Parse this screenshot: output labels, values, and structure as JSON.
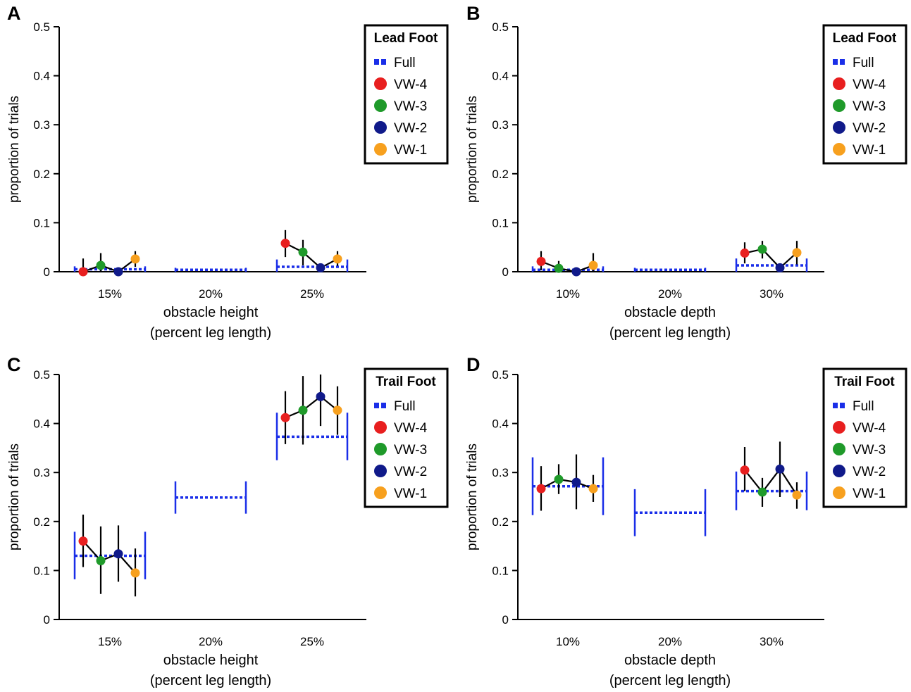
{
  "colors": {
    "full": "#1a2ee8",
    "vw4": "#e81f1f",
    "vw3": "#1f9a2a",
    "vw2": "#101a8a",
    "vw1": "#f7a01e",
    "line": "#000000"
  },
  "chart_data": [
    {
      "type": "scatter",
      "panel_letter": "A",
      "legend_title": "Lead Foot",
      "xlabel": "obstacle height",
      "xlabel2": "(percent leg length)",
      "ylabel": "proportion of trials",
      "ylim": [
        0,
        0.5
      ],
      "yticks": [
        "0",
        "0.1",
        "0.2",
        "0.3",
        "0.4",
        "0.5"
      ],
      "categories": [
        "15%",
        "20%",
        "25%"
      ],
      "legend": [
        {
          "name": "Full",
          "key": "full",
          "marker": "dash"
        },
        {
          "name": "VW-4",
          "key": "vw4",
          "marker": "dot"
        },
        {
          "name": "VW-3",
          "key": "vw3",
          "marker": "dot"
        },
        {
          "name": "VW-2",
          "key": "vw2",
          "marker": "dot"
        },
        {
          "name": "VW-1",
          "key": "vw1",
          "marker": "dot"
        }
      ],
      "full": [
        {
          "value": 0.005,
          "low": 0.0,
          "high": 0.011
        },
        {
          "value": 0.004,
          "low": 0.0,
          "high": 0.008
        },
        {
          "value": 0.01,
          "low": 0.0,
          "high": 0.025
        }
      ],
      "vw": [
        [
          {
            "value": 0.0,
            "low": 0.0,
            "high": 0.027
          },
          {
            "value": 0.013,
            "low": 0.0,
            "high": 0.038
          },
          {
            "value": 0.0,
            "low": 0.0,
            "high": 0.0
          },
          {
            "value": 0.026,
            "low": 0.01,
            "high": 0.042
          }
        ],
        [
          null,
          null,
          null,
          null
        ],
        [
          {
            "value": 0.058,
            "low": 0.03,
            "high": 0.085
          },
          {
            "value": 0.04,
            "low": 0.013,
            "high": 0.065
          },
          {
            "value": 0.008,
            "low": 0.0,
            "high": 0.008
          },
          {
            "value": 0.026,
            "low": 0.012,
            "high": 0.042
          }
        ]
      ]
    },
    {
      "type": "scatter",
      "panel_letter": "B",
      "legend_title": "Lead Foot",
      "xlabel": "obstacle depth",
      "xlabel2": "(percent leg length)",
      "ylabel": "proportion of trials",
      "ylim": [
        0,
        0.5
      ],
      "yticks": [
        "0",
        "0.1",
        "0.2",
        "0.3",
        "0.4",
        "0.5"
      ],
      "categories": [
        "10%",
        "20%",
        "30%"
      ],
      "legend": [
        {
          "name": "Full",
          "key": "full",
          "marker": "dash"
        },
        {
          "name": "VW-4",
          "key": "vw4",
          "marker": "dot"
        },
        {
          "name": "VW-3",
          "key": "vw3",
          "marker": "dot"
        },
        {
          "name": "VW-2",
          "key": "vw2",
          "marker": "dot"
        },
        {
          "name": "VW-1",
          "key": "vw1",
          "marker": "dot"
        }
      ],
      "full": [
        {
          "value": 0.004,
          "low": 0.0,
          "high": 0.011
        },
        {
          "value": 0.004,
          "low": 0.0,
          "high": 0.008
        },
        {
          "value": 0.013,
          "low": 0.0,
          "high": 0.027
        }
      ],
      "vw": [
        [
          {
            "value": 0.021,
            "low": 0.003,
            "high": 0.042
          },
          {
            "value": 0.007,
            "low": 0.0,
            "high": 0.022
          },
          {
            "value": 0.0,
            "low": 0.0,
            "high": 0.0
          },
          {
            "value": 0.013,
            "low": 0.0,
            "high": 0.038
          }
        ],
        [
          null,
          null,
          null,
          null
        ],
        [
          {
            "value": 0.038,
            "low": 0.017,
            "high": 0.06
          },
          {
            "value": 0.046,
            "low": 0.027,
            "high": 0.063
          },
          {
            "value": 0.008,
            "low": 0.0,
            "high": 0.008
          },
          {
            "value": 0.039,
            "low": 0.015,
            "high": 0.063
          }
        ]
      ]
    },
    {
      "type": "scatter",
      "panel_letter": "C",
      "legend_title": "Trail Foot",
      "xlabel": "obstacle height",
      "xlabel2": "(percent leg length)",
      "ylabel": "proportion of trials",
      "ylim": [
        0,
        0.5
      ],
      "yticks": [
        "0",
        "0.1",
        "0.2",
        "0.3",
        "0.4",
        "0.5"
      ],
      "categories": [
        "15%",
        "20%",
        "25%"
      ],
      "legend": [
        {
          "name": "Full",
          "key": "full",
          "marker": "dash"
        },
        {
          "name": "VW-4",
          "key": "vw4",
          "marker": "dot"
        },
        {
          "name": "VW-3",
          "key": "vw3",
          "marker": "dot"
        },
        {
          "name": "VW-2",
          "key": "vw2",
          "marker": "dot"
        },
        {
          "name": "VW-1",
          "key": "vw1",
          "marker": "dot"
        }
      ],
      "full": [
        {
          "value": 0.13,
          "low": 0.082,
          "high": 0.179
        },
        {
          "value": 0.249,
          "low": 0.216,
          "high": 0.282
        },
        {
          "value": 0.373,
          "low": 0.325,
          "high": 0.422
        }
      ],
      "vw": [
        [
          {
            "value": 0.16,
            "low": 0.107,
            "high": 0.214
          },
          {
            "value": 0.12,
            "low": 0.052,
            "high": 0.19
          },
          {
            "value": 0.134,
            "low": 0.077,
            "high": 0.192
          },
          {
            "value": 0.095,
            "low": 0.047,
            "high": 0.145
          }
        ],
        [
          null,
          null,
          null,
          null
        ],
        [
          {
            "value": 0.412,
            "low": 0.358,
            "high": 0.466
          },
          {
            "value": 0.427,
            "low": 0.357,
            "high": 0.497
          },
          {
            "value": 0.455,
            "low": 0.395,
            "high": 0.5
          },
          {
            "value": 0.427,
            "low": 0.377,
            "high": 0.476
          }
        ]
      ]
    },
    {
      "type": "scatter",
      "panel_letter": "D",
      "legend_title": "Trail Foot",
      "xlabel": "obstacle depth",
      "xlabel2": "(percent leg length)",
      "ylabel": "proportion of trials",
      "ylim": [
        0,
        0.5
      ],
      "yticks": [
        "0",
        "0.1",
        "0.2",
        "0.3",
        "0.4",
        "0.5"
      ],
      "categories": [
        "10%",
        "20%",
        "30%"
      ],
      "legend": [
        {
          "name": "Full",
          "key": "full",
          "marker": "dash"
        },
        {
          "name": "VW-4",
          "key": "vw4",
          "marker": "dot"
        },
        {
          "name": "VW-3",
          "key": "vw3",
          "marker": "dot"
        },
        {
          "name": "VW-2",
          "key": "vw2",
          "marker": "dot"
        },
        {
          "name": "VW-1",
          "key": "vw1",
          "marker": "dot"
        }
      ],
      "full": [
        {
          "value": 0.272,
          "low": 0.213,
          "high": 0.331
        },
        {
          "value": 0.218,
          "low": 0.17,
          "high": 0.266
        },
        {
          "value": 0.262,
          "low": 0.223,
          "high": 0.302
        }
      ],
      "vw": [
        [
          {
            "value": 0.267,
            "low": 0.222,
            "high": 0.313
          },
          {
            "value": 0.286,
            "low": 0.256,
            "high": 0.317
          },
          {
            "value": 0.28,
            "low": 0.225,
            "high": 0.337
          },
          {
            "value": 0.267,
            "low": 0.24,
            "high": 0.295
          }
        ],
        [
          null,
          null,
          null,
          null
        ],
        [
          {
            "value": 0.305,
            "low": 0.262,
            "high": 0.352
          },
          {
            "value": 0.26,
            "low": 0.23,
            "high": 0.289
          },
          {
            "value": 0.307,
            "low": 0.25,
            "high": 0.363
          },
          {
            "value": 0.254,
            "low": 0.226,
            "high": 0.28
          }
        ]
      ]
    }
  ]
}
